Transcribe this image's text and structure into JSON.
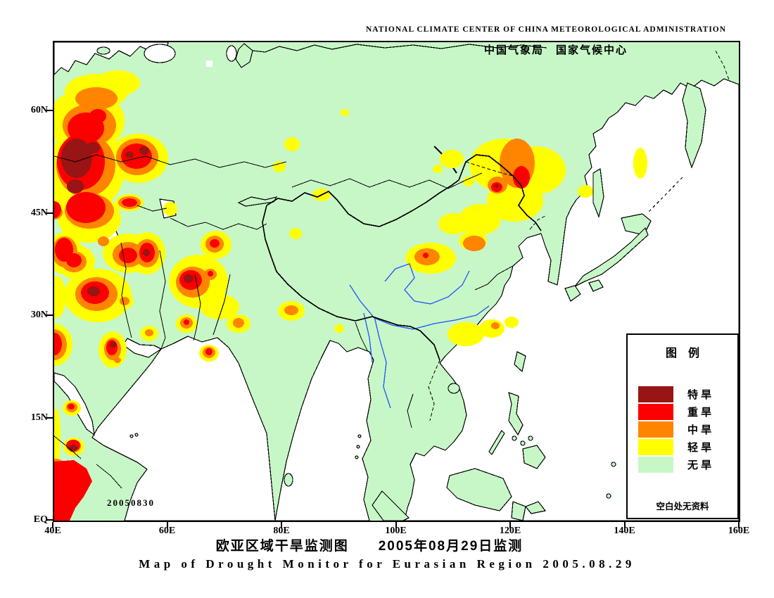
{
  "header": {
    "title_en": "NATIONAL CLIMATE CENTER OF CHINA METEOROLOGICAL ADMINISTRATION",
    "title_cn": "中国气象局　国家气候中心"
  },
  "map": {
    "date_stamp": "20050830"
  },
  "axes": {
    "latitude_labels": [
      "60N",
      "45N",
      "30N",
      "15N",
      "EQ"
    ],
    "longitude_labels": [
      "40E",
      "60E",
      "80E",
      "100E",
      "120E",
      "140E",
      "160E"
    ]
  },
  "legend": {
    "title": "图　例",
    "items": [
      {
        "label": "特 旱",
        "color": "#991414"
      },
      {
        "label": "重 旱",
        "color": "#FC0000"
      },
      {
        "label": "中 旱",
        "color": "#FF8400"
      },
      {
        "label": "轻 旱",
        "color": "#FFFF00"
      },
      {
        "label": "无 旱",
        "color": "#C7F7C7"
      }
    ],
    "footnote": "空白处无资料"
  },
  "captions": {
    "title_cn": "欧亚区域干旱监测图　　2005年08月29日监测",
    "title_en": "Map of Drought Monitor for Eurasian Region    2005.08.29"
  },
  "colors": {
    "land": "#C7F7C7",
    "ocean": "#FFFFFF",
    "river": "#2E5CF6",
    "outline": "#000000",
    "drought_extreme": "#991414",
    "drought_severe": "#FC0000",
    "drought_moderate": "#FF8400",
    "drought_light": "#FFFF00",
    "no_drought": "#C7F7C7"
  }
}
